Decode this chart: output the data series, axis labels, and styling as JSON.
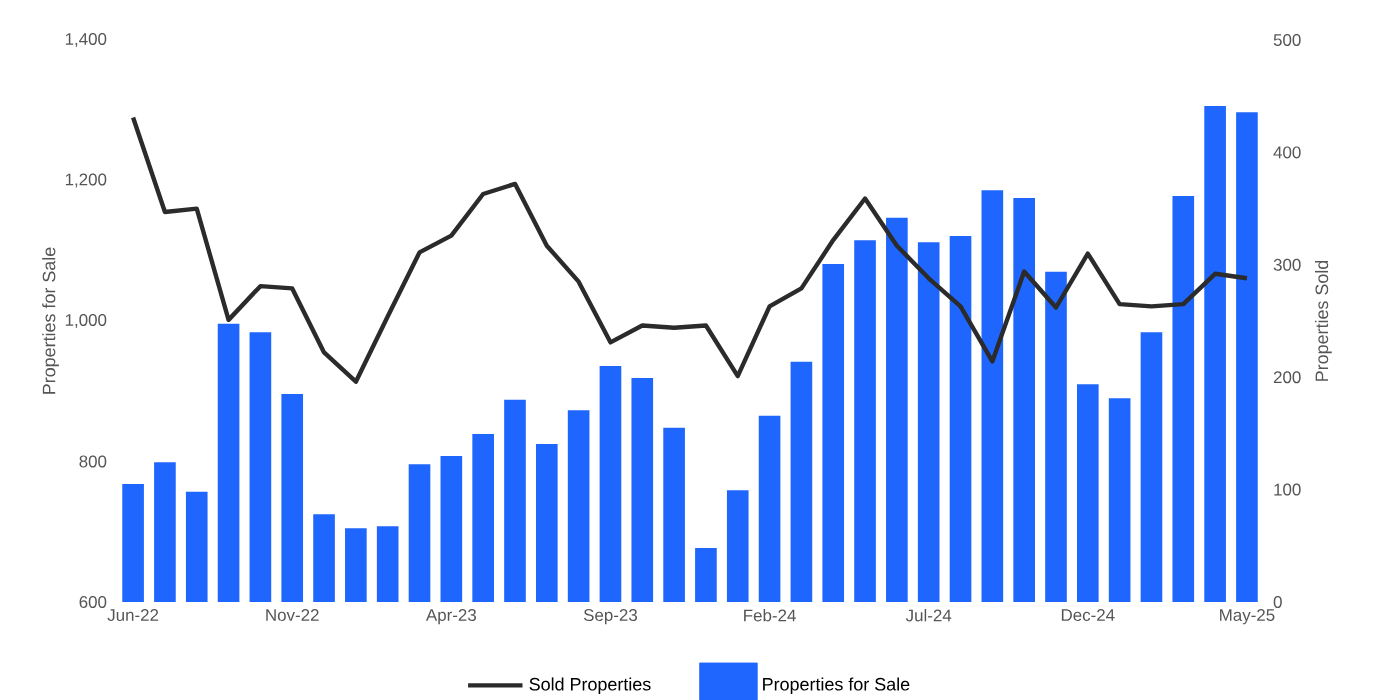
{
  "chart_data": {
    "type": "bar",
    "categories": [
      "Jun-22",
      null,
      null,
      null,
      null,
      "Nov-22",
      null,
      null,
      null,
      null,
      "Apr-23",
      null,
      null,
      null,
      null,
      "Sep-23",
      null,
      null,
      null,
      null,
      "Feb-24",
      null,
      null,
      null,
      null,
      "Jul-24",
      null,
      null,
      null,
      null,
      "Dec-24",
      null,
      null,
      null,
      null,
      "May-25"
    ],
    "series": [
      {
        "name": "Sold Properties",
        "type": "line",
        "axis": "y2",
        "color": "#2b2b2b",
        "values": [
          431,
          347,
          350,
          251,
          281,
          279,
          222,
          196,
          254,
          311,
          326,
          363,
          372,
          317,
          285,
          231,
          246,
          244,
          246,
          201,
          263,
          279,
          322,
          359,
          317,
          288,
          263,
          214,
          294,
          262,
          310,
          265,
          263,
          265,
          292,
          288
        ]
      },
      {
        "name": "Properties for Sale",
        "color": "#1f66ff",
        "values": [
          768,
          799,
          757,
          996,
          984,
          896,
          725,
          705,
          708,
          796,
          808,
          839,
          888,
          825,
          873,
          936,
          919,
          848,
          677,
          759,
          865,
          942,
          1081,
          1115,
          1147,
          1112,
          1121,
          1186,
          1175,
          1070,
          910,
          890,
          984,
          1178,
          1306,
          1297
        ]
      }
    ],
    "ylabel": "Properties for Sale",
    "y2label": "Properties Sold",
    "ylim": [
      600,
      1400
    ],
    "yticks": [
      600,
      800,
      {
        "value": 1000,
        "label": "1,000"
      },
      {
        "value": 1200,
        "label": "1,200"
      },
      {
        "value": 1400,
        "label": "1,400"
      }
    ],
    "y2lim": [
      0,
      500
    ],
    "y2ticks": [
      0,
      100,
      200,
      300,
      400,
      500
    ],
    "legend": "bottom"
  }
}
